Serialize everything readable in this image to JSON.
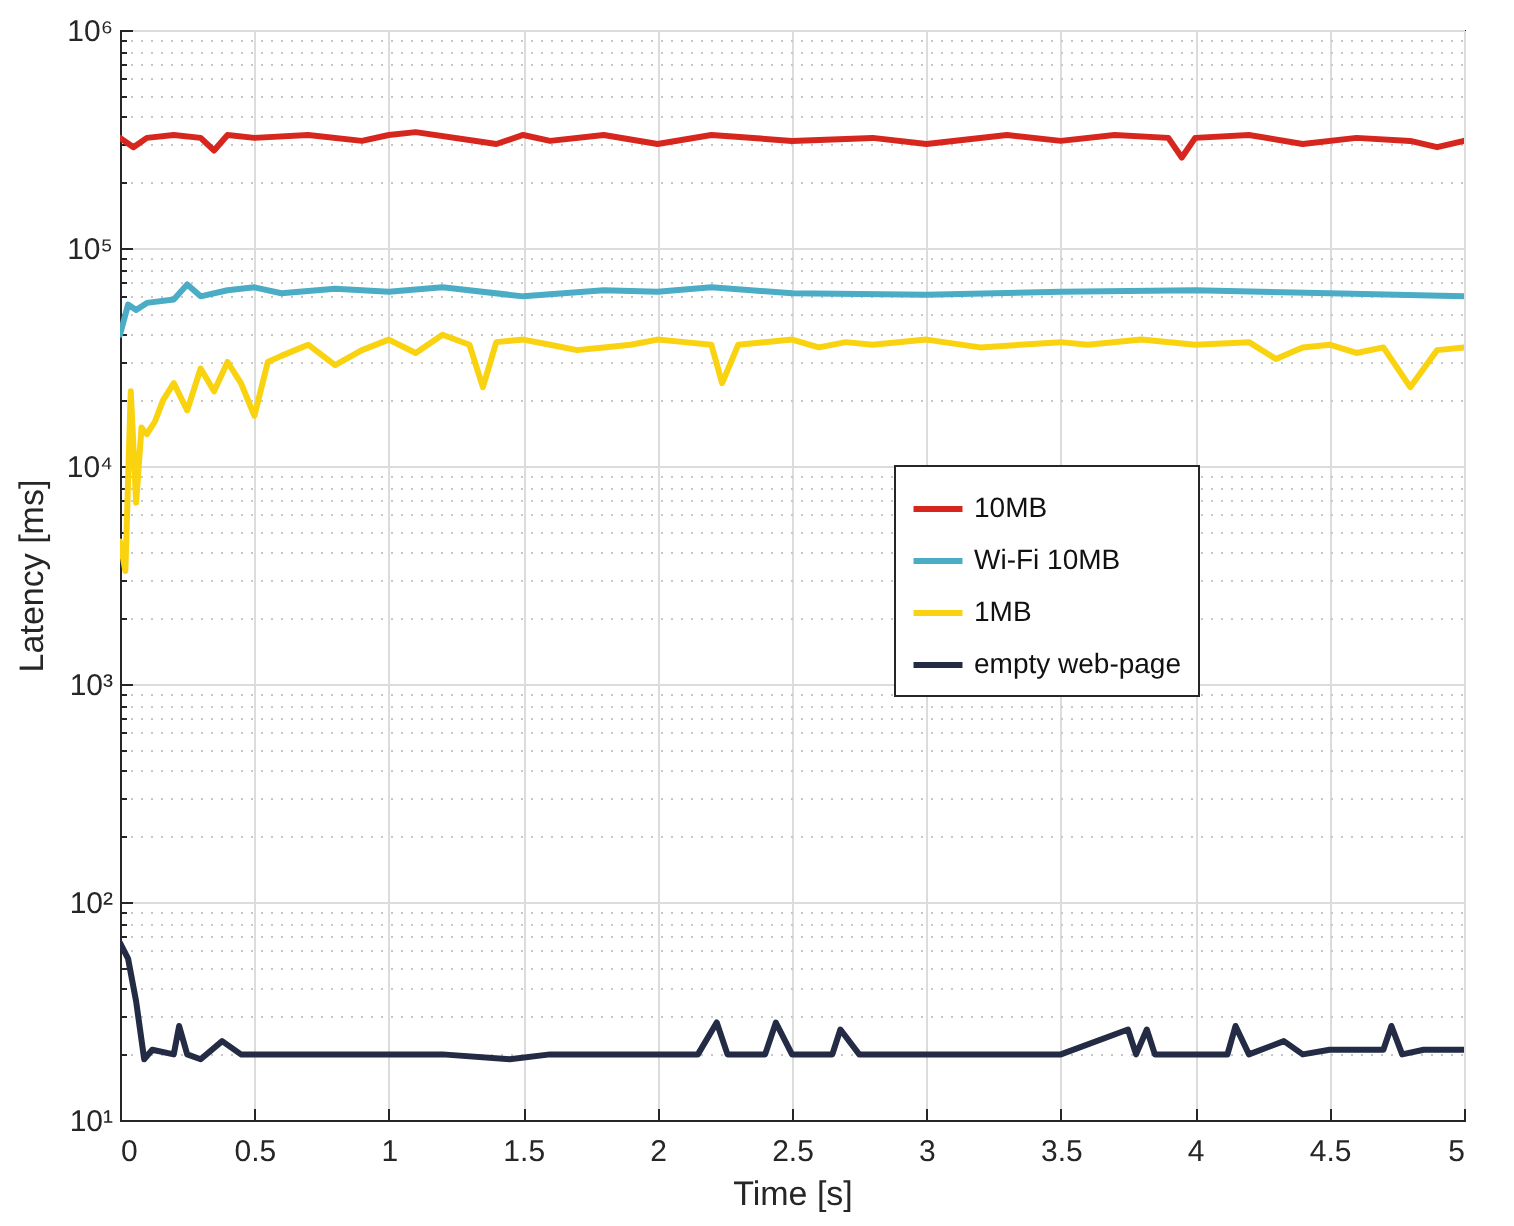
{
  "chart_data": {
    "type": "line",
    "xlabel": "Time [s]",
    "ylabel": "Latency [ms]",
    "log": "y",
    "grid": true,
    "legend": "right",
    "line_style": "solid",
    "xlim": [
      0,
      5
    ],
    "xticks": [
      0,
      0.5,
      1,
      1.5,
      2,
      2.5,
      3,
      3.5,
      4,
      4.5,
      5
    ],
    "ylim": [
      10,
      1000000
    ],
    "yticks": [
      {
        "value": 10,
        "label": "10¹"
      },
      {
        "value": 100,
        "label": "10²"
      },
      {
        "value": 1000,
        "label": "10³"
      },
      {
        "value": 10000,
        "label": "10⁴"
      },
      {
        "value": 100000,
        "label": "10⁵"
      },
      {
        "value": 1000000,
        "label": "10⁶"
      }
    ],
    "series": [
      {
        "name": "10MB",
        "color": "#d7261e",
        "x": [
          0,
          0.05,
          0.1,
          0.2,
          0.3,
          0.35,
          0.4,
          0.5,
          0.7,
          0.9,
          1.0,
          1.1,
          1.4,
          1.5,
          1.6,
          1.8,
          2.0,
          2.2,
          2.5,
          2.8,
          3.0,
          3.3,
          3.5,
          3.7,
          3.9,
          3.95,
          4.0,
          4.2,
          4.4,
          4.6,
          4.8,
          4.9,
          5.0
        ],
        "values": [
          320000,
          290000,
          320000,
          330000,
          320000,
          280000,
          330000,
          320000,
          330000,
          310000,
          330000,
          340000,
          300000,
          330000,
          310000,
          330000,
          300000,
          330000,
          310000,
          320000,
          300000,
          330000,
          310000,
          330000,
          320000,
          260000,
          320000,
          330000,
          300000,
          320000,
          310000,
          290000,
          310000
        ]
      },
      {
        "name": "Wi-Fi 10MB",
        "color": "#4bacc6",
        "x": [
          0,
          0.03,
          0.06,
          0.1,
          0.2,
          0.25,
          0.3,
          0.4,
          0.5,
          0.6,
          0.8,
          1.0,
          1.2,
          1.5,
          1.8,
          2.0,
          2.2,
          2.5,
          3.0,
          3.5,
          4.0,
          4.5,
          5.0
        ],
        "values": [
          40000,
          55000,
          52000,
          56000,
          58000,
          68000,
          60000,
          64000,
          66000,
          62000,
          65000,
          63000,
          66000,
          60000,
          64000,
          63000,
          66000,
          62000,
          61000,
          63000,
          64000,
          62000,
          60000
        ]
      },
      {
        "name": "1MB",
        "color": "#f9d30f",
        "x": [
          0,
          0.02,
          0.04,
          0.06,
          0.08,
          0.1,
          0.13,
          0.16,
          0.2,
          0.25,
          0.3,
          0.35,
          0.4,
          0.45,
          0.5,
          0.55,
          0.6,
          0.7,
          0.8,
          0.9,
          1.0,
          1.1,
          1.2,
          1.3,
          1.35,
          1.4,
          1.5,
          1.6,
          1.7,
          1.8,
          1.9,
          2.0,
          2.1,
          2.2,
          2.24,
          2.3,
          2.5,
          2.6,
          2.7,
          2.8,
          3.0,
          3.2,
          3.5,
          3.6,
          3.8,
          4.0,
          4.2,
          4.3,
          4.4,
          4.5,
          4.6,
          4.7,
          4.8,
          4.9,
          5.0
        ],
        "values": [
          4500,
          3300,
          22000,
          6800,
          15000,
          14000,
          16000,
          20000,
          24000,
          18000,
          28000,
          22000,
          30000,
          24000,
          17000,
          30000,
          32000,
          36000,
          29000,
          34000,
          38000,
          33000,
          40000,
          36000,
          23000,
          37000,
          38000,
          36000,
          34000,
          35000,
          36000,
          38000,
          37000,
          36000,
          24000,
          36000,
          38000,
          35000,
          37000,
          36000,
          38000,
          35000,
          37000,
          36000,
          38000,
          36000,
          37000,
          31000,
          35000,
          36000,
          33000,
          35000,
          23000,
          34000,
          35000
        ]
      },
      {
        "name": "empty web-page",
        "color": "#232b45",
        "x": [
          0,
          0.03,
          0.06,
          0.09,
          0.12,
          0.2,
          0.22,
          0.25,
          0.3,
          0.38,
          0.45,
          0.6,
          0.8,
          1.0,
          1.2,
          1.45,
          1.6,
          1.8,
          2.0,
          2.15,
          2.22,
          2.26,
          2.4,
          2.44,
          2.5,
          2.65,
          2.68,
          2.75,
          3.0,
          3.3,
          3.5,
          3.75,
          3.78,
          3.82,
          3.85,
          3.9,
          4.0,
          4.12,
          4.15,
          4.2,
          4.33,
          4.4,
          4.5,
          4.7,
          4.73,
          4.77,
          4.85,
          5.0
        ],
        "values": [
          65,
          55,
          35,
          19,
          21,
          20,
          27,
          20,
          19,
          23,
          20,
          20,
          20,
          20,
          20,
          19,
          20,
          20,
          20,
          20,
          28,
          20,
          20,
          28,
          20,
          20,
          26,
          20,
          20,
          20,
          20,
          26,
          20,
          26,
          20,
          20,
          20,
          20,
          27,
          20,
          23,
          20,
          21,
          21,
          27,
          20,
          21,
          21
        ]
      }
    ]
  }
}
